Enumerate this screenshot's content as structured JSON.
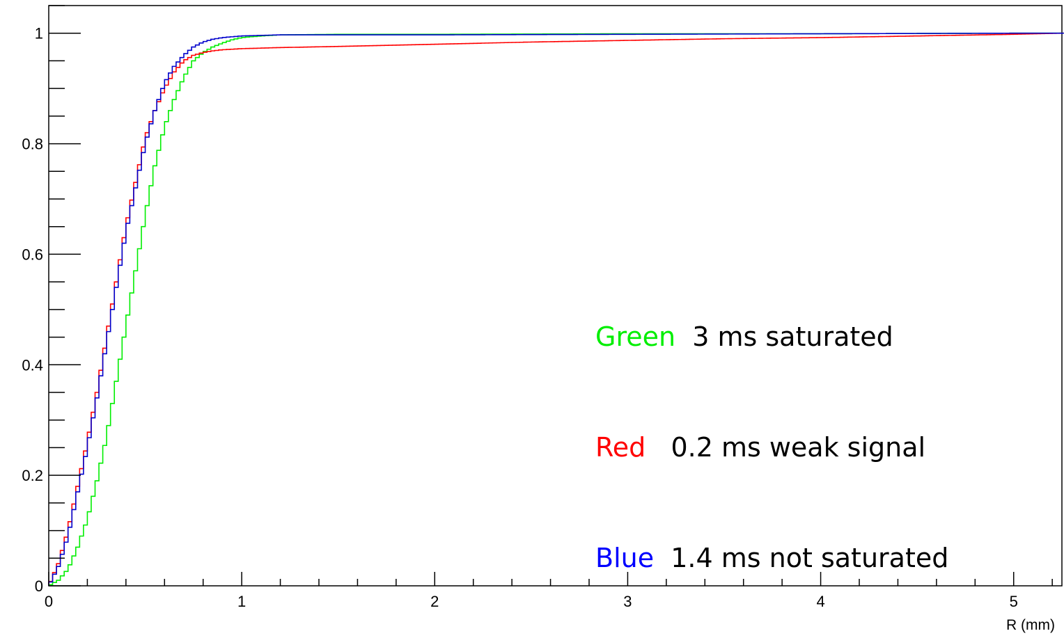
{
  "chart_data": {
    "type": "line",
    "title": "",
    "xlabel": "R (mm)",
    "ylabel": "",
    "xlim": [
      0,
      5.25
    ],
    "ylim": [
      0,
      1.05
    ],
    "grid": false,
    "legend_placement": "center-right",
    "x_ticks": [
      "0",
      "1",
      "2",
      "3",
      "4",
      "5"
    ],
    "y_ticks": [
      "0",
      "0.2",
      "0.4",
      "0.6",
      "0.8",
      "1"
    ],
    "series": [
      {
        "name": "Green",
        "description": "3 ms saturated",
        "color": "#00ee00",
        "x": [
          0,
          0.05,
          0.1,
          0.15,
          0.2,
          0.25,
          0.3,
          0.35,
          0.4,
          0.45,
          0.5,
          0.55,
          0.6,
          0.65,
          0.7,
          0.75,
          0.8,
          0.85,
          0.9,
          0.95,
          1.0,
          1.1,
          1.2,
          1.5,
          2.0,
          3.0,
          4.0,
          5.0,
          5.25
        ],
        "y": [
          0,
          0.01,
          0.03,
          0.07,
          0.12,
          0.19,
          0.27,
          0.37,
          0.47,
          0.57,
          0.67,
          0.76,
          0.83,
          0.88,
          0.92,
          0.95,
          0.965,
          0.975,
          0.982,
          0.988,
          0.992,
          0.995,
          0.997,
          0.998,
          0.998,
          0.999,
          0.999,
          1.0,
          1.0
        ]
      },
      {
        "name": "Red",
        "description": "0.2 ms weak signal",
        "color": "#ff0000",
        "x": [
          0,
          0.05,
          0.1,
          0.15,
          0.2,
          0.25,
          0.3,
          0.35,
          0.4,
          0.45,
          0.5,
          0.55,
          0.6,
          0.65,
          0.7,
          0.75,
          0.8,
          0.85,
          0.9,
          1.0,
          1.2,
          1.5,
          2.0,
          2.5,
          3.0,
          3.5,
          4.0,
          4.5,
          5.0,
          5.25
        ],
        "y": [
          0,
          0.04,
          0.1,
          0.18,
          0.26,
          0.35,
          0.45,
          0.55,
          0.65,
          0.73,
          0.81,
          0.86,
          0.9,
          0.93,
          0.95,
          0.96,
          0.965,
          0.968,
          0.97,
          0.972,
          0.974,
          0.976,
          0.98,
          0.984,
          0.987,
          0.99,
          0.992,
          0.995,
          0.998,
          1.0
        ]
      },
      {
        "name": "Blue",
        "description": "1.4 ms not saturated",
        "color": "#0000cc",
        "x": [
          0,
          0.05,
          0.1,
          0.15,
          0.2,
          0.25,
          0.3,
          0.35,
          0.4,
          0.45,
          0.5,
          0.55,
          0.6,
          0.65,
          0.7,
          0.75,
          0.8,
          0.85,
          0.9,
          1.0,
          1.1,
          1.2,
          1.5,
          2.0,
          3.0,
          4.0,
          5.0,
          5.25
        ],
        "y": [
          0,
          0.035,
          0.09,
          0.17,
          0.25,
          0.34,
          0.44,
          0.54,
          0.64,
          0.72,
          0.8,
          0.86,
          0.91,
          0.94,
          0.96,
          0.975,
          0.984,
          0.989,
          0.992,
          0.995,
          0.996,
          0.997,
          0.997,
          0.997,
          0.998,
          0.999,
          1.0,
          1.0
        ]
      }
    ]
  },
  "legend": {
    "rows": [
      {
        "name": "Green",
        "text": "  3 ms saturated",
        "color": "#00ee00"
      },
      {
        "name": "Red",
        "text": "   0.2 ms weak signal",
        "color": "#ff0000"
      },
      {
        "name": "Blue",
        "text": "  1.4 ms not saturated",
        "color": "#0000ff"
      }
    ]
  }
}
